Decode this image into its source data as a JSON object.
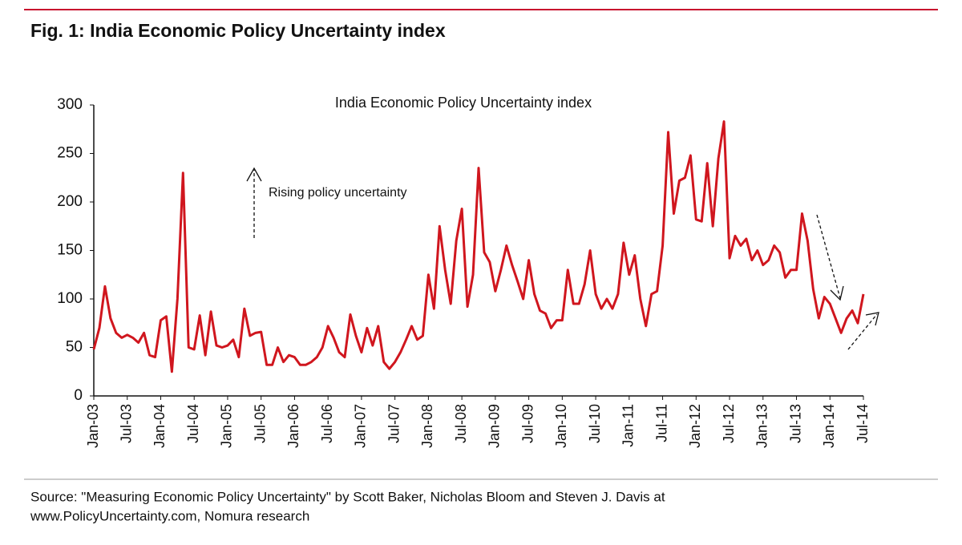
{
  "chart_data": {
    "type": "line",
    "heading": "Fig. 1: India Economic Policy Uncertainty index",
    "title": "India Economic Policy Uncertainty index",
    "annotation": "Rising policy uncertainty",
    "source": [
      "Source: \"Measuring Economic Policy Uncertainty\" by Scott Baker, Nicholas Bloom and Steven J. Davis at",
      "www.PolicyUncertainty.com, Nomura research"
    ],
    "categories": [
      "Jan-03",
      null,
      null,
      null,
      null,
      null,
      "Jul-03",
      null,
      null,
      null,
      null,
      null,
      "Jan-04",
      null,
      null,
      null,
      null,
      null,
      "Jul-04",
      null,
      null,
      null,
      null,
      null,
      "Jan-05",
      null,
      null,
      null,
      null,
      null,
      "Jul-05",
      null,
      null,
      null,
      null,
      null,
      "Jan-06",
      null,
      null,
      null,
      null,
      null,
      "Jul-06",
      null,
      null,
      null,
      null,
      null,
      "Jan-07",
      null,
      null,
      null,
      null,
      null,
      "Jul-07",
      null,
      null,
      null,
      null,
      null,
      "Jan-08",
      null,
      null,
      null,
      null,
      null,
      "Jul-08",
      null,
      null,
      null,
      null,
      null,
      "Jan-09",
      null,
      null,
      null,
      null,
      null,
      "Jul-09",
      null,
      null,
      null,
      null,
      null,
      "Jan-10",
      null,
      null,
      null,
      null,
      null,
      "Jul-10",
      null,
      null,
      null,
      null,
      null,
      "Jan-11",
      null,
      null,
      null,
      null,
      null,
      "Jul-11",
      null,
      null,
      null,
      null,
      null,
      "Jan-12",
      null,
      null,
      null,
      null,
      null,
      "Jul-12",
      null,
      null,
      null,
      null,
      null,
      "Jan-13",
      null,
      null,
      null,
      null,
      null,
      "Jul-13",
      null,
      null,
      null,
      null,
      null,
      "Jan-14",
      null,
      null,
      null,
      null,
      null,
      "Jul-14"
    ],
    "series": [
      {
        "color": "#d0161e",
        "values": [
          48,
          70,
          113,
          80,
          65,
          60,
          63,
          60,
          55,
          65,
          42,
          40,
          78,
          82,
          25,
          100,
          230,
          50,
          48,
          83,
          42,
          87,
          52,
          50,
          52,
          58,
          40,
          90,
          62,
          65,
          66,
          32,
          32,
          50,
          35,
          42,
          40,
          32,
          32,
          35,
          40,
          50,
          72,
          60,
          45,
          40,
          84,
          62,
          45,
          70,
          52,
          72,
          35,
          28,
          35,
          45,
          58,
          72,
          58,
          62,
          125,
          90,
          175,
          130,
          95,
          160,
          193,
          92,
          125,
          235,
          148,
          138,
          108,
          130,
          155,
          135,
          118,
          100,
          140,
          105,
          88,
          85,
          70,
          78,
          78,
          130,
          95,
          95,
          115,
          150,
          105,
          90,
          100,
          90,
          105,
          158,
          125,
          145,
          100,
          72,
          105,
          108,
          155,
          272,
          188,
          222,
          225,
          248,
          182,
          180,
          240,
          175,
          245,
          283,
          142,
          165,
          155,
          162,
          140,
          150,
          135,
          140,
          155,
          148,
          122,
          130,
          130,
          188,
          160,
          110,
          80,
          102,
          95,
          80,
          65,
          80,
          88,
          75,
          105
        ]
      }
    ],
    "ylim": [
      0,
      300
    ],
    "yticks": [
      0,
      50,
      100,
      150,
      200,
      250,
      300
    ],
    "grid": false
  }
}
